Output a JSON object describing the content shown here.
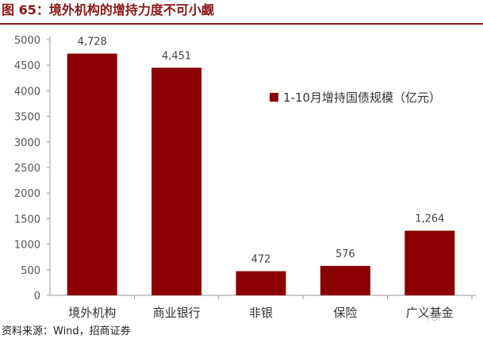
{
  "title": "图 65：境外机构的增持力度不可小觑",
  "source": "资料来源：Wind，招商证券",
  "watermark": "FOF",
  "colors": {
    "bar": "#8b0000",
    "title": "#8b1515"
  },
  "chart_data": {
    "type": "bar",
    "categories": [
      "境外机构",
      "商业银行",
      "非银",
      "保险",
      "广义基金"
    ],
    "series": [
      {
        "name": "1-10月增持国债规模（亿元）",
        "values": [
          4728,
          4451,
          472,
          576,
          1264
        ]
      }
    ],
    "data_labels": [
      "4,728",
      "4,451",
      "472",
      "576",
      "1,264"
    ],
    "ylim": [
      0,
      5000
    ],
    "yticks": [
      0,
      500,
      1000,
      1500,
      2000,
      2500,
      3000,
      3500,
      4000,
      4500,
      5000
    ],
    "legend": "right",
    "grid": false
  }
}
